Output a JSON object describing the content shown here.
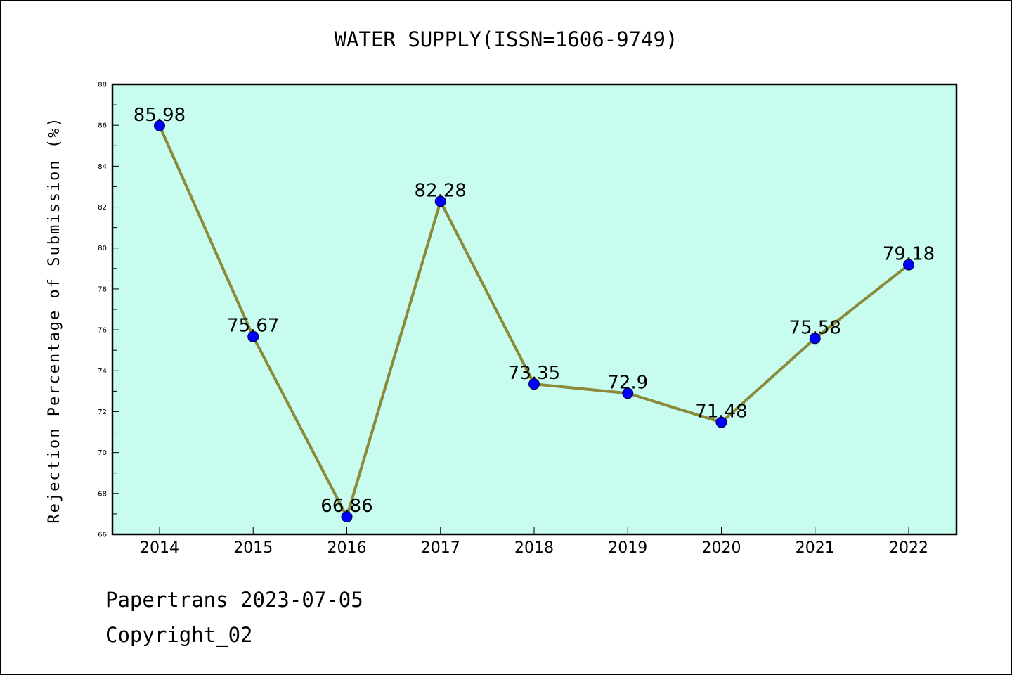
{
  "chart_data": {
    "type": "line",
    "title": "WATER SUPPLY(ISSN=1606-9749)",
    "xlabel": "",
    "ylabel": "Rejection Percentage of Submission (%)",
    "categories": [
      "2014",
      "2015",
      "2016",
      "2017",
      "2018",
      "2019",
      "2020",
      "2021",
      "2022"
    ],
    "series": [
      {
        "values": [
          85.98,
          75.67,
          66.86,
          82.28,
          73.35,
          72.9,
          71.48,
          75.58,
          79.18
        ],
        "labels": [
          "85.98",
          "75.67",
          "66.86",
          "82.28",
          "73.35",
          "72.9",
          "71.48",
          "75.58",
          "79.18"
        ]
      }
    ],
    "ylim": [
      66,
      88
    ],
    "yticks": [
      "66",
      "68",
      "70",
      "72",
      "74",
      "76",
      "78",
      "80",
      "82",
      "84",
      "86",
      "88"
    ],
    "grid": false,
    "colors": {
      "plot_background": "#c8fcef",
      "line": "#8a8a3a",
      "marker": "#0000ff",
      "axes": "#000000"
    }
  },
  "footer": {
    "line1": "Papertrans 2023-07-05",
    "line2": "Copyright_02"
  }
}
